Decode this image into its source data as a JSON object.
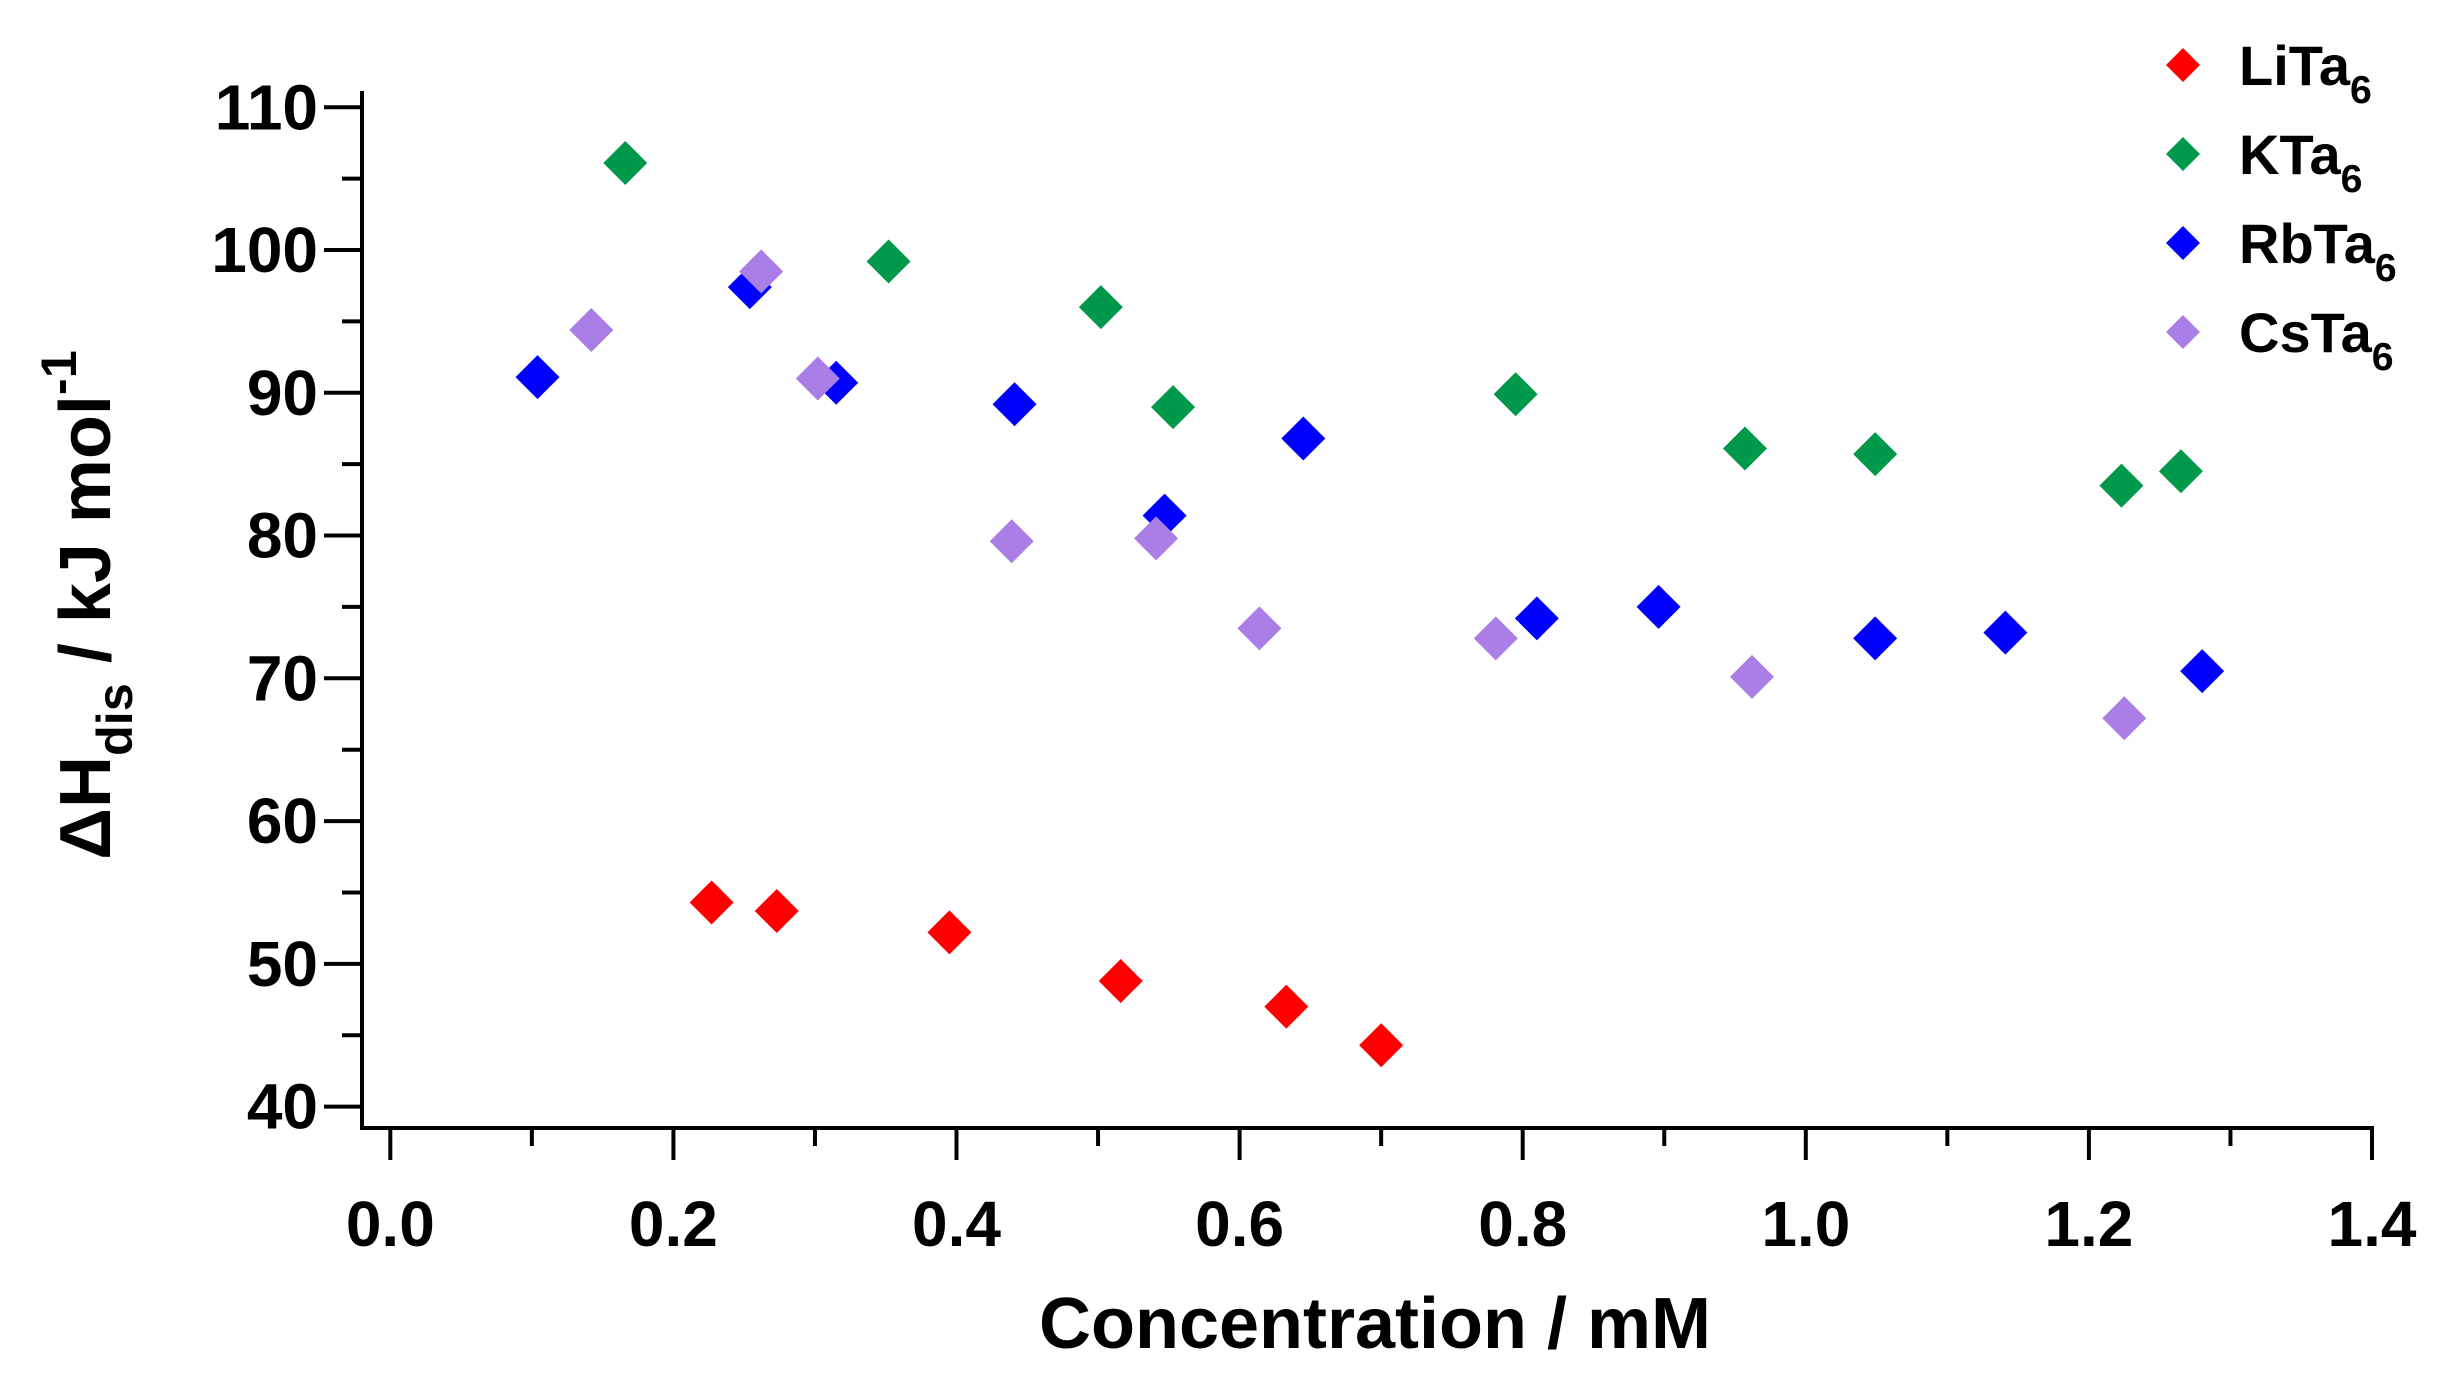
{
  "chart_data": {
    "type": "scatter",
    "title": "",
    "xlabel": "Concentration / mM",
    "ylabel": {
      "prefix": "ΔH",
      "subscript": "dis",
      "units": "  / kJ mol",
      "superscript": "-1"
    },
    "xlim": [
      -0.02,
      1.4
    ],
    "ylim": [
      38.5,
      111
    ],
    "x_ticks": [
      {
        "value": 0.0,
        "label": "0.0"
      },
      {
        "value": 0.2,
        "label": "0.2"
      },
      {
        "value": 0.4,
        "label": "0.4"
      },
      {
        "value": 0.6,
        "label": "0.6"
      },
      {
        "value": 0.8,
        "label": "0.8"
      },
      {
        "value": 1.0,
        "label": "1.0"
      },
      {
        "value": 1.2,
        "label": "1.2"
      },
      {
        "value": 1.4,
        "label": "1.4"
      }
    ],
    "x_minor_ticks": [
      0.1,
      0.3,
      0.5,
      0.7,
      0.9,
      1.1,
      1.3
    ],
    "y_ticks": [
      {
        "value": 40,
        "label": "40"
      },
      {
        "value": 50,
        "label": "50"
      },
      {
        "value": 60,
        "label": "60"
      },
      {
        "value": 70,
        "label": "70"
      },
      {
        "value": 80,
        "label": "80"
      },
      {
        "value": 90,
        "label": "90"
      },
      {
        "value": 100,
        "label": "100"
      },
      {
        "value": 110,
        "label": "110"
      }
    ],
    "y_minor_ticks": [
      45,
      55,
      65,
      75,
      85,
      95,
      105
    ],
    "grid": false,
    "legend_position": "top-right",
    "marker": "diamond",
    "series": [
      {
        "name": "LiTa",
        "subscript": "6",
        "color": "#ff0000",
        "points": [
          {
            "x": 0.227,
            "y": 54.3
          },
          {
            "x": 0.273,
            "y": 53.7
          },
          {
            "x": 0.395,
            "y": 52.2
          },
          {
            "x": 0.516,
            "y": 48.8
          },
          {
            "x": 0.633,
            "y": 47.0
          },
          {
            "x": 0.7,
            "y": 44.3
          }
        ]
      },
      {
        "name": "KTa",
        "subscript": "6",
        "color": "#00994c",
        "points": [
          {
            "x": 0.166,
            "y": 106.1
          },
          {
            "x": 0.352,
            "y": 99.2
          },
          {
            "x": 0.502,
            "y": 96.0
          },
          {
            "x": 0.553,
            "y": 89.0
          },
          {
            "x": 0.795,
            "y": 89.9
          },
          {
            "x": 0.957,
            "y": 86.1
          },
          {
            "x": 1.049,
            "y": 85.7
          },
          {
            "x": 1.223,
            "y": 83.5
          },
          {
            "x": 1.265,
            "y": 84.5
          }
        ]
      },
      {
        "name": "RbTa",
        "subscript": "6",
        "color": "#0000ff",
        "points": [
          {
            "x": 0.104,
            "y": 91.1
          },
          {
            "x": 0.254,
            "y": 97.4
          },
          {
            "x": 0.315,
            "y": 90.7
          },
          {
            "x": 0.441,
            "y": 89.2
          },
          {
            "x": 0.547,
            "y": 81.4
          },
          {
            "x": 0.645,
            "y": 86.8
          },
          {
            "x": 0.81,
            "y": 74.2
          },
          {
            "x": 0.896,
            "y": 75.0
          },
          {
            "x": 1.049,
            "y": 72.8
          },
          {
            "x": 1.141,
            "y": 73.2
          },
          {
            "x": 1.28,
            "y": 70.5
          }
        ]
      },
      {
        "name": "CsTa",
        "subscript": "6",
        "color": "#a97ee6",
        "points": [
          {
            "x": 0.142,
            "y": 94.4
          },
          {
            "x": 0.262,
            "y": 98.5
          },
          {
            "x": 0.302,
            "y": 91.0
          },
          {
            "x": 0.439,
            "y": 79.6
          },
          {
            "x": 0.541,
            "y": 79.8
          },
          {
            "x": 0.614,
            "y": 73.5
          },
          {
            "x": 0.781,
            "y": 72.8
          },
          {
            "x": 0.962,
            "y": 70.1
          },
          {
            "x": 1.225,
            "y": 67.2
          }
        ]
      }
    ]
  }
}
